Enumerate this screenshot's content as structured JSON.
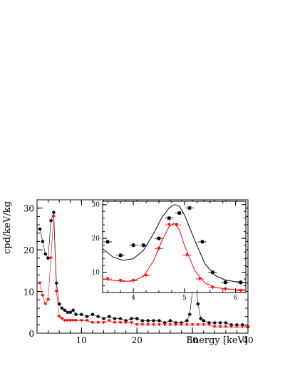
{
  "chart_data": [
    {
      "type": "scatter",
      "panel": "main",
      "xlabel": "Energy [keV]",
      "ylabel": "cpd/keV/kg",
      "xlim": [
        2,
        40
      ],
      "ylim": [
        0,
        32
      ],
      "xticks": [
        10,
        20,
        30,
        40
      ],
      "yticks": [
        0,
        10,
        20,
        30
      ],
      "series": [
        {
          "color": "#000000",
          "marker": "circle",
          "x": [
            2.5,
            3.0,
            3.5,
            4.0,
            4.5,
            5.0,
            5.5,
            6.0,
            6.5,
            7.0,
            7.5,
            8.0,
            8.5,
            9.0,
            10.0,
            11.0,
            12.0,
            13.0,
            14.0,
            15.0,
            16.0,
            17.0,
            18.0,
            19.0,
            20.0,
            21.0,
            22.0,
            23.0,
            24.0,
            25.0,
            26.0,
            27.0,
            28.0,
            29.0,
            29.5,
            30.0,
            30.5,
            31.0,
            31.5,
            32.0,
            33.0,
            34.0,
            35.0,
            36.0,
            37.0,
            38.0,
            39.0,
            40.0
          ],
          "y": [
            25,
            22,
            19,
            18,
            27,
            29,
            12,
            7,
            6,
            5.5,
            5,
            5,
            5.5,
            4.5,
            4.5,
            4,
            4.5,
            4,
            3.5,
            4,
            3.5,
            3.5,
            3,
            3.5,
            3.5,
            3,
            3,
            3,
            3,
            2.5,
            3,
            2.5,
            2.5,
            3,
            4.5,
            10,
            13,
            7,
            3.5,
            3,
            2.5,
            2.5,
            2.5,
            2.5,
            2,
            2,
            2,
            1.5
          ]
        },
        {
          "color": "#ff0000",
          "marker": "triangle-down",
          "x": [
            2.5,
            3.0,
            3.5,
            4.0,
            4.5,
            5.0,
            5.5,
            6.0,
            6.5,
            7.0,
            7.5,
            8.0,
            8.5,
            9.0,
            10.0,
            11.0,
            12.0,
            13.0,
            14.0,
            15.0,
            16.0,
            17.0,
            18.0,
            19.0,
            20.0,
            21.0,
            22.0,
            23.0,
            24.0,
            25.0,
            26.0,
            27.0,
            28.0,
            29.0,
            30.0,
            31.0,
            32.0,
            33.0,
            34.0,
            35.0,
            36.0,
            37.0,
            38.0,
            39.0,
            40.0
          ],
          "y": [
            12,
            9,
            7,
            8,
            18,
            28,
            10,
            4,
            3.5,
            3,
            3,
            3,
            3,
            3,
            3,
            3,
            2.5,
            2.5,
            2.5,
            3,
            2.5,
            2.5,
            2.5,
            2.5,
            2,
            2,
            2,
            2,
            2,
            2,
            2,
            2,
            2,
            2,
            2,
            2,
            2,
            2,
            1.5,
            1.5,
            1.5,
            1.5,
            1.5,
            1.5,
            1.5
          ]
        }
      ]
    },
    {
      "type": "scatter",
      "panel": "inset",
      "xlim": [
        3.4,
        6.2
      ],
      "ylim": [
        4,
        31
      ],
      "xticks": [
        4,
        5,
        6
      ],
      "yticks": [
        10,
        20,
        30
      ],
      "series": [
        {
          "color": "#000000",
          "marker": "square",
          "x": [
            3.5,
            3.75,
            4.0,
            4.2,
            4.5,
            4.7,
            4.9,
            5.1,
            5.35,
            5.55,
            5.8,
            6.1
          ],
          "y": [
            19,
            15,
            18,
            18,
            20,
            26,
            27.5,
            29,
            19,
            10,
            7,
            7
          ],
          "fit_x": [
            3.4,
            3.6,
            3.8,
            4.0,
            4.2,
            4.4,
            4.55,
            4.7,
            4.8,
            4.9,
            5.0,
            5.2,
            5.4,
            5.6,
            5.8,
            6.0,
            6.2
          ],
          "fit_y": [
            17,
            14.5,
            13.5,
            14,
            16.5,
            21.5,
            26,
            29,
            30,
            29.5,
            27,
            19.5,
            12.5,
            9,
            7.7,
            7.2,
            7
          ]
        },
        {
          "color": "#ff0000",
          "marker": "triangle-down",
          "x": [
            3.5,
            3.75,
            4.0,
            4.25,
            4.5,
            4.7,
            4.85,
            5.05,
            5.3,
            5.55,
            5.8,
            6.1
          ],
          "y": [
            8,
            7.5,
            7.5,
            9,
            17,
            24,
            24,
            15,
            8,
            5.5,
            5,
            4.5
          ],
          "fit_x": [
            3.4,
            3.6,
            3.8,
            4.0,
            4.2,
            4.4,
            4.55,
            4.7,
            4.8,
            4.9,
            5.0,
            5.2,
            5.4,
            5.6,
            5.8,
            6.0,
            6.2
          ],
          "fit_y": [
            8,
            7.6,
            7.3,
            7.4,
            8.8,
            13.5,
            19,
            23.5,
            24.5,
            22.5,
            18,
            10.5,
            6.8,
            5.5,
            5.1,
            4.9,
            4.8
          ]
        }
      ]
    }
  ]
}
